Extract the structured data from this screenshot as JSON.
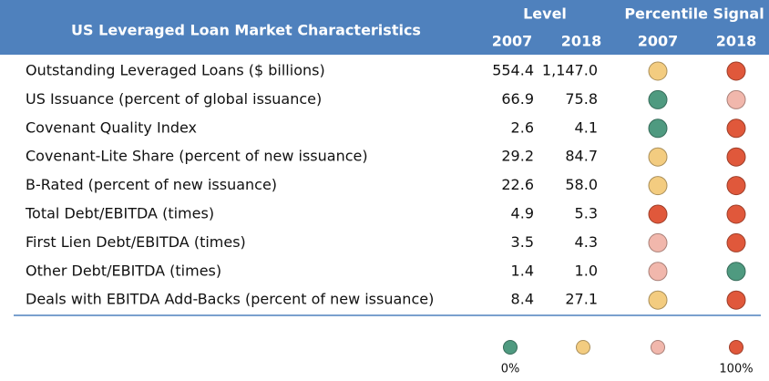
{
  "header": {
    "title": "US Leveraged Loan Market Characteristics",
    "groups": [
      "Level",
      "Percentile Signal"
    ],
    "years": [
      "2007",
      "2018",
      "2007",
      "2018"
    ]
  },
  "table": {
    "rows": [
      {
        "label": "Outstanding Leveraged Loans ($ billions)",
        "level": [
          "554.4",
          "1,147.0"
        ],
        "signal": [
          "#f3cc80",
          "#e0583b"
        ]
      },
      {
        "label": "US Issuance (percent of global issuance)",
        "level": [
          "66.9",
          "75.8"
        ],
        "signal": [
          "#4f9a80",
          "#f1b7ac"
        ]
      },
      {
        "label": "Covenant Quality Index",
        "level": [
          "2.6",
          "4.1"
        ],
        "signal": [
          "#4f9a80",
          "#e0583b"
        ]
      },
      {
        "label": "Covenant-Lite Share (percent of new issuance)",
        "level": [
          "29.2",
          "84.7"
        ],
        "signal": [
          "#f3cc80",
          "#e0583b"
        ]
      },
      {
        "label": "B-Rated (percent of new issuance)",
        "level": [
          "22.6",
          "58.0"
        ],
        "signal": [
          "#f3cc80",
          "#e0583b"
        ]
      },
      {
        "label": "Total Debt/EBITDA (times)",
        "level": [
          "4.9",
          "5.3"
        ],
        "signal": [
          "#e0583b",
          "#e0583b"
        ]
      },
      {
        "label": "First Lien Debt/EBITDA (times)",
        "level": [
          "3.5",
          "4.3"
        ],
        "signal": [
          "#f1b7ac",
          "#e0583b"
        ]
      },
      {
        "label": "Other Debt/EBITDA (times)",
        "level": [
          "1.4",
          "1.0"
        ],
        "signal": [
          "#f1b7ac",
          "#4f9a80"
        ]
      },
      {
        "label": "Deals with EBITDA Add-Backs (percent of new issuance)",
        "level": [
          "8.4",
          "27.1"
        ],
        "signal": [
          "#f3cc80",
          "#e0583b"
        ]
      }
    ]
  },
  "legend": {
    "colors": [
      "#4f9a80",
      "#f3cc80",
      "#f1b7ac",
      "#e0583b"
    ],
    "low": "0%",
    "high": "100%"
  }
}
